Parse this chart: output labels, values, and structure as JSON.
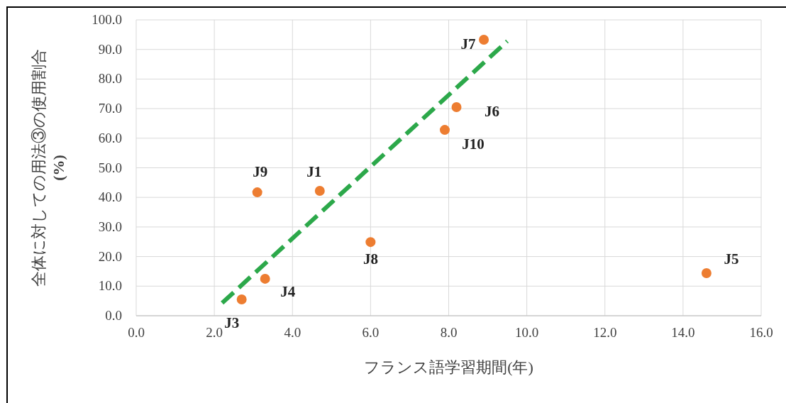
{
  "chart_data": {
    "type": "scatter",
    "xlabel": "フランス語学習期間(年)",
    "ylabel": "全体に対しての用法③の使用割合 (%)",
    "xlim": [
      0,
      16
    ],
    "ylim": [
      0,
      100
    ],
    "xticks": [
      {
        "value": 0,
        "label": "0.0"
      },
      {
        "value": 2,
        "label": "2.0"
      },
      {
        "value": 4,
        "label": "4.0"
      },
      {
        "value": 6,
        "label": "6.0"
      },
      {
        "value": 8,
        "label": "8.0"
      },
      {
        "value": 10,
        "label": "10.0"
      },
      {
        "value": 12,
        "label": "12.0"
      },
      {
        "value": 14,
        "label": "14.0"
      },
      {
        "value": 16,
        "label": "16.0"
      }
    ],
    "yticks": [
      {
        "value": 0,
        "label": "0.0"
      },
      {
        "value": 10,
        "label": "10.0"
      },
      {
        "value": 20,
        "label": "20.0"
      },
      {
        "value": 30,
        "label": "30.0"
      },
      {
        "value": 40,
        "label": "40.0"
      },
      {
        "value": 50,
        "label": "50.0"
      },
      {
        "value": 60,
        "label": "60.0"
      },
      {
        "value": 70,
        "label": "70.0"
      },
      {
        "value": 80,
        "label": "80.0"
      },
      {
        "value": 90,
        "label": "90.0"
      },
      {
        "value": 100,
        "label": "100.0"
      }
    ],
    "grid": true,
    "series": [
      {
        "color": "#ed7d31",
        "marker": "circle",
        "x": [
          4.7,
          2.7,
          3.3,
          14.6,
          8.2,
          8.9,
          6.0,
          3.1,
          7.9
        ],
        "values": [
          42.2,
          5.5,
          12.5,
          14.4,
          70.5,
          93.3,
          24.9,
          41.7,
          62.8
        ]
      },
      {
        "type": "line",
        "color": "#2ca84a",
        "line_style": "dashed",
        "x": [
          2.2,
          9.5
        ],
        "values": [
          4.3,
          92.8
        ]
      }
    ],
    "annotations": [
      {
        "text": "J1",
        "x": 4.7,
        "y": 42.2
      },
      {
        "text": "J3",
        "x": 2.7,
        "y": 5.5
      },
      {
        "text": "J4",
        "x": 3.3,
        "y": 12.5
      },
      {
        "text": "J5",
        "x": 14.6,
        "y": 14.4
      },
      {
        "text": "J6",
        "x": 8.2,
        "y": 70.5
      },
      {
        "text": "J7",
        "x": 8.9,
        "y": 93.3
      },
      {
        "text": "J8",
        "x": 6.0,
        "y": 24.9
      },
      {
        "text": "J9",
        "x": 3.1,
        "y": 41.7
      },
      {
        "text": "J10",
        "x": 7.9,
        "y": 62.8
      }
    ]
  }
}
